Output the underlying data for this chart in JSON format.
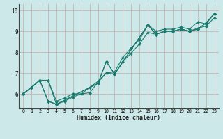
{
  "xlabel": "Humidex (Indice chaleur)",
  "bg_color": "#cce8e8",
  "grid_color": "#c8a8a8",
  "line_color": "#1a7a6e",
  "xlim": [
    -0.5,
    23.5
  ],
  "ylim": [
    5.3,
    10.3
  ],
  "yticks": [
    6,
    7,
    8,
    9,
    10
  ],
  "xticks": [
    0,
    1,
    2,
    3,
    4,
    5,
    6,
    7,
    8,
    9,
    10,
    11,
    12,
    13,
    14,
    15,
    16,
    17,
    18,
    19,
    20,
    21,
    22,
    23
  ],
  "lineA_x": [
    0,
    1,
    2,
    3,
    4,
    5,
    6,
    7,
    8,
    9,
    10,
    11,
    12,
    13,
    14,
    15,
    16,
    17,
    18,
    19,
    20,
    21,
    22,
    23
  ],
  "lineA_y": [
    6.0,
    6.3,
    6.65,
    6.65,
    5.65,
    5.8,
    6.0,
    6.0,
    6.3,
    6.6,
    7.0,
    7.05,
    7.75,
    8.2,
    8.6,
    9.3,
    9.0,
    9.1,
    9.1,
    9.2,
    9.1,
    9.45,
    9.35,
    9.85
  ],
  "lineB_x": [
    0,
    1,
    2,
    3,
    4,
    5,
    6,
    7,
    8,
    9,
    10,
    11,
    12,
    13,
    14,
    15,
    16,
    17,
    18,
    19,
    20,
    21,
    22,
    23
  ],
  "lineB_y": [
    6.0,
    6.3,
    6.65,
    5.65,
    5.5,
    5.65,
    5.85,
    6.0,
    6.05,
    6.55,
    7.0,
    6.95,
    7.55,
    7.95,
    8.4,
    8.95,
    8.85,
    9.0,
    9.0,
    9.1,
    9.0,
    9.15,
    9.25,
    9.65
  ],
  "lineC_x": [
    0,
    1,
    2,
    3,
    4,
    9,
    10,
    11,
    15,
    16,
    17,
    18,
    19,
    20,
    21,
    22,
    23
  ],
  "lineC_y": [
    6.0,
    6.3,
    6.65,
    6.65,
    5.5,
    6.5,
    7.55,
    6.95,
    9.3,
    8.85,
    9.0,
    9.0,
    9.1,
    9.0,
    9.1,
    9.4,
    9.85
  ],
  "lineD_x": [
    0,
    2,
    3,
    4,
    9,
    10,
    11,
    15,
    16,
    17,
    18,
    19,
    20,
    21,
    22,
    23
  ],
  "lineD_y": [
    6.0,
    6.65,
    5.65,
    5.5,
    6.5,
    7.55,
    6.95,
    9.3,
    8.85,
    9.0,
    9.0,
    9.1,
    9.0,
    9.1,
    9.4,
    9.85
  ]
}
